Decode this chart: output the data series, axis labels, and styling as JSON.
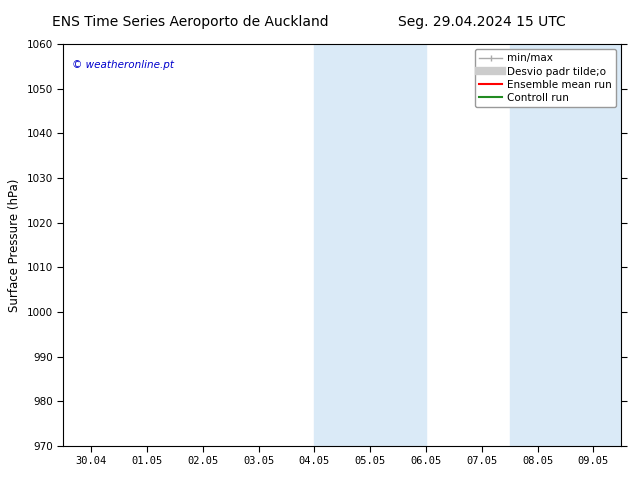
{
  "title_left": "ENS Time Series Aeroporto de Auckland",
  "title_right": "Seg. 29.04.2024 15 UTC",
  "ylabel": "Surface Pressure (hPa)",
  "ylim": [
    970,
    1060
  ],
  "yticks": [
    970,
    980,
    990,
    1000,
    1010,
    1020,
    1030,
    1040,
    1050,
    1060
  ],
  "xlim": [
    -0.5,
    9.5
  ],
  "xtick_labels": [
    "30.04",
    "01.05",
    "02.05",
    "03.05",
    "04.05",
    "05.05",
    "06.05",
    "07.05",
    "08.05",
    "09.05"
  ],
  "xtick_positions": [
    0,
    1,
    2,
    3,
    4,
    5,
    6,
    7,
    8,
    9
  ],
  "shaded_regions": [
    {
      "xmin": 4.0,
      "xmax": 6.0,
      "color": "#daeaf7"
    },
    {
      "xmin": 7.5,
      "xmax": 9.5,
      "color": "#daeaf7"
    }
  ],
  "watermark_text": "© weatheronline.pt",
  "watermark_color": "#0000cc",
  "legend_entries": [
    {
      "label": "min/max",
      "color": "#aaaaaa",
      "linewidth": 1.0
    },
    {
      "label": "Desvio padr tilde;o",
      "color": "#cccccc",
      "linewidth": 6
    },
    {
      "label": "Ensemble mean run",
      "color": "#ff0000",
      "linewidth": 1.5
    },
    {
      "label": "Controll run",
      "color": "#228B22",
      "linewidth": 1.5
    }
  ],
  "background_color": "#ffffff",
  "plot_bg_color": "#ffffff",
  "title_fontsize": 10,
  "tick_fontsize": 7.5,
  "ylabel_fontsize": 8.5,
  "watermark_fontsize": 7.5,
  "legend_fontsize": 7.5
}
